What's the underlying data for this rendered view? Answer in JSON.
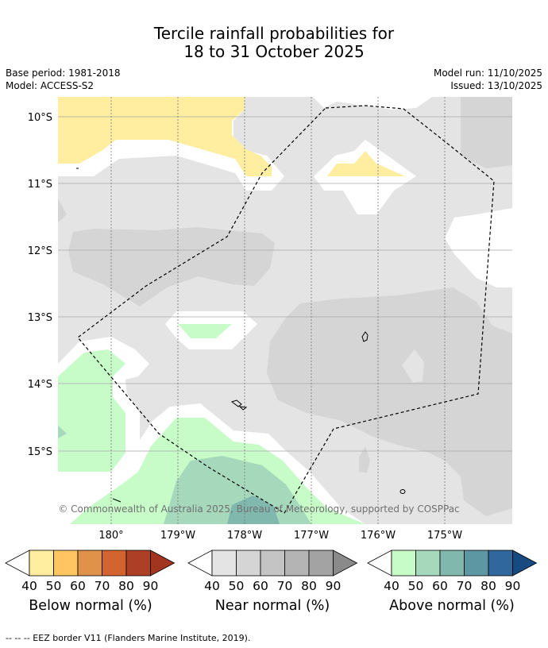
{
  "title_line1": "Tercile rainfall probabilities for",
  "title_line2": "18 to 31 October 2025",
  "base_period": "Base period: 1981-2018",
  "model": "Model: ACCESS-S2",
  "model_run": "Model run: 11/10/2025",
  "issued": "Issued: 13/10/2025",
  "lat_labels": [
    "10°S",
    "11°S",
    "12°S",
    "13°S",
    "14°S",
    "15°S"
  ],
  "lon_labels": [
    "180°",
    "179°W",
    "178°W",
    "177°W",
    "176°W",
    "175°W"
  ],
  "copyright": "© Commonwealth of Australia 2025, Bureau of Meteorology, supported by COSPPac",
  "colorbars": [
    {
      "label": "Below normal (%)",
      "ticks": [
        "40",
        "50",
        "60",
        "70",
        "80",
        "90"
      ],
      "colors": [
        "#ffffff",
        "#ffeda0",
        "#fec560",
        "#e0914a",
        "#d3632f",
        "#ad4024",
        "#a23520"
      ]
    },
    {
      "label": "Near normal (%)",
      "ticks": [
        "40",
        "50",
        "60",
        "70",
        "80",
        "90"
      ],
      "colors": [
        "#ffffff",
        "#e4e4e4",
        "#d5d5d5",
        "#c4c4c4",
        "#b4b4b4",
        "#a3a3a3",
        "#8a8a8a"
      ]
    },
    {
      "label": "Above normal (%)",
      "ticks": [
        "40",
        "50",
        "60",
        "70",
        "80",
        "90"
      ],
      "colors": [
        "#ffffff",
        "#c7fcc9",
        "#a6d8bc",
        "#80b8ae",
        "#5d97a3",
        "#30679c",
        "#174a80"
      ]
    }
  ],
  "footnote": "--  --  -- EEZ border V11 (Flanders Marine Institute, 2019)."
}
